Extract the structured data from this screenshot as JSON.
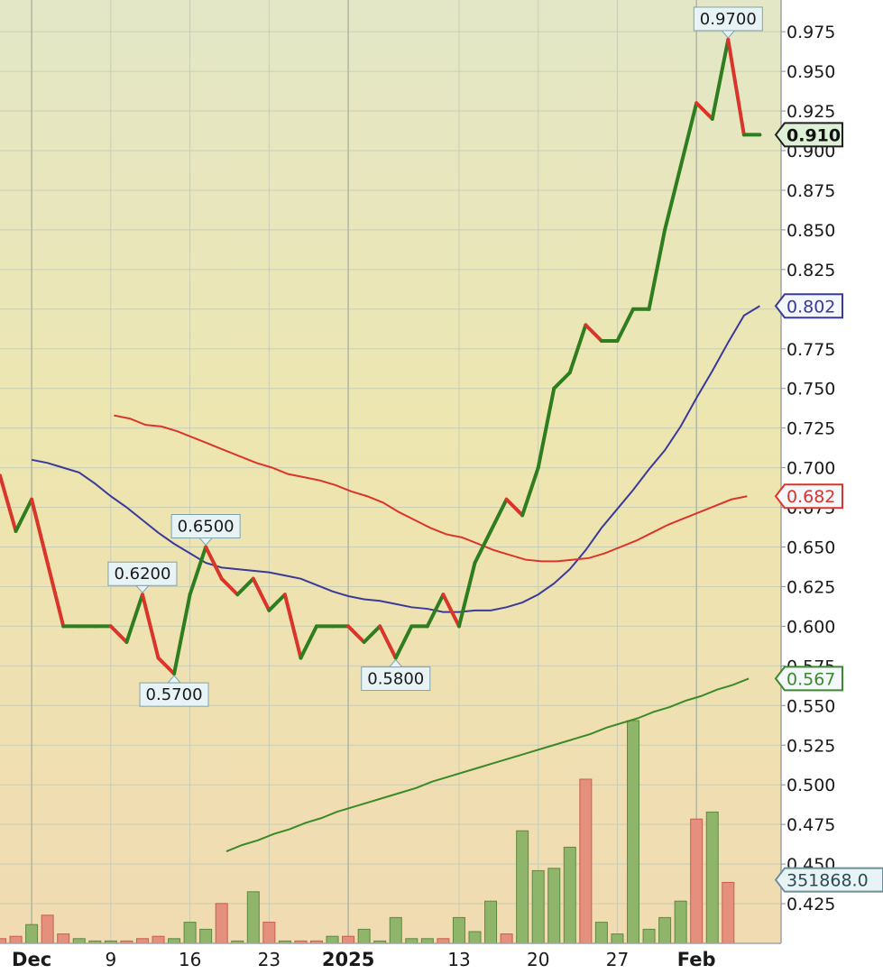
{
  "chart_data": {
    "type": "line",
    "title": "",
    "xlabel": "",
    "ylabel": "",
    "ylim": [
      0.4,
      0.995
    ],
    "grid": true,
    "y_ticks": [
      "0.425",
      "0.450",
      "0.475",
      "0.500",
      "0.525",
      "0.550",
      "0.575",
      "0.600",
      "0.625",
      "0.650",
      "0.675",
      "0.700",
      "0.725",
      "0.750",
      "0.775",
      "0.800",
      "0.825",
      "0.850",
      "0.875",
      "0.900",
      "0.925",
      "0.950",
      "0.975"
    ],
    "x_ticks": [
      {
        "label": "Dec",
        "bold": true,
        "index": 2
      },
      {
        "label": "9",
        "bold": false,
        "index": 7
      },
      {
        "label": "16",
        "bold": false,
        "index": 12
      },
      {
        "label": "23",
        "bold": false,
        "index": 17
      },
      {
        "label": "2025",
        "bold": true,
        "index": 22
      },
      {
        "label": "13",
        "bold": false,
        "index": 29
      },
      {
        "label": "20",
        "bold": false,
        "index": 34
      },
      {
        "label": "27",
        "bold": false,
        "index": 39
      },
      {
        "label": "Feb",
        "bold": true,
        "index": 44
      }
    ],
    "price": {
      "name": "",
      "values": [
        0.695,
        0.66,
        0.68,
        0.64,
        0.6,
        0.6,
        0.6,
        0.6,
        0.59,
        0.62,
        0.58,
        0.57,
        0.62,
        0.65,
        0.63,
        0.62,
        0.63,
        0.61,
        0.62,
        0.58,
        0.6,
        0.6,
        0.6,
        0.59,
        0.6,
        0.58,
        0.6,
        0.6,
        0.62,
        0.6,
        0.64,
        0.66,
        0.68,
        0.67,
        0.7,
        0.75,
        0.76,
        0.79,
        0.78,
        0.78,
        0.8,
        0.8,
        0.85,
        0.89,
        0.93,
        0.92,
        0.97,
        0.91,
        0.91
      ],
      "up_color": "#2e7d1f",
      "down_color": "#d9352a"
    },
    "moving_averages": [
      {
        "name": "",
        "color": "#3a3a9a",
        "last_label": "0.802",
        "start_index": 0,
        "values": [
          0.705,
          0.703,
          0.7,
          0.697,
          0.69,
          0.682,
          0.675,
          0.667,
          0.659,
          0.652,
          0.646,
          0.64,
          0.637,
          0.636,
          0.635,
          0.634,
          0.632,
          0.63,
          0.626,
          0.622,
          0.619,
          0.617,
          0.616,
          0.614,
          0.612,
          0.611,
          0.609,
          0.609,
          0.61,
          0.61,
          0.612,
          0.615,
          0.62,
          0.627,
          0.636,
          0.648,
          0.662,
          0.674,
          0.686,
          0.699,
          0.711,
          0.726,
          0.744,
          0.761,
          0.779,
          0.796,
          0.802
        ]
      },
      {
        "name": "",
        "color": "#d9352a",
        "last_label": "0.682",
        "start_index": 0,
        "values": [
          0.733,
          0.731,
          0.727,
          0.726,
          0.723,
          0.719,
          0.715,
          0.711,
          0.707,
          0.703,
          0.7,
          0.696,
          0.694,
          0.692,
          0.689,
          0.685,
          0.682,
          0.678,
          0.672,
          0.667,
          0.662,
          0.658,
          0.656,
          0.652,
          0.648,
          0.645,
          0.642,
          0.641,
          0.641,
          0.642,
          0.643,
          0.646,
          0.65,
          0.654,
          0.659,
          0.664,
          0.668,
          0.672,
          0.676,
          0.68,
          0.682
        ]
      },
      {
        "name": "",
        "color": "#3a8a2a",
        "last_label": "0.567",
        "start_index": 0,
        "values": [
          0.458,
          0.462,
          0.465,
          0.469,
          0.472,
          0.476,
          0.479,
          0.483,
          0.486,
          0.489,
          0.492,
          0.495,
          0.498,
          0.502,
          0.505,
          0.508,
          0.511,
          0.514,
          0.517,
          0.52,
          0.523,
          0.526,
          0.529,
          0.532,
          0.536,
          0.539,
          0.542,
          0.546,
          0.549,
          0.553,
          0.556,
          0.56,
          0.563,
          0.567
        ]
      }
    ],
    "annotations": [
      {
        "label": "0.9700",
        "index": 46,
        "value": 0.97,
        "position": "above"
      },
      {
        "label": "0.6500",
        "index": 13,
        "value": 0.65,
        "position": "above"
      },
      {
        "label": "0.6200",
        "index": 9,
        "value": 0.62,
        "position": "above"
      },
      {
        "label": "0.5700",
        "index": 11,
        "value": 0.57,
        "position": "below"
      },
      {
        "label": "0.5800",
        "index": 25,
        "value": 0.58,
        "position": "below"
      }
    ],
    "last_price_label": "0.910",
    "volume": {
      "last_label": "351868.0",
      "max": 1000000,
      "bars": [
        {
          "v": 20000,
          "up": false
        },
        {
          "v": 30000,
          "up": false
        },
        {
          "v": 80000,
          "up": true
        },
        {
          "v": 120000,
          "up": false
        },
        {
          "v": 40000,
          "up": false
        },
        {
          "v": 20000,
          "up": true
        },
        {
          "v": 10000,
          "up": true
        },
        {
          "v": 10000,
          "up": true
        },
        {
          "v": 10000,
          "up": false
        },
        {
          "v": 20000,
          "up": false
        },
        {
          "v": 30000,
          "up": false
        },
        {
          "v": 20000,
          "up": true
        },
        {
          "v": 90000,
          "up": true
        },
        {
          "v": 60000,
          "up": true
        },
        {
          "v": 170000,
          "up": false
        },
        {
          "v": 10000,
          "up": true
        },
        {
          "v": 220000,
          "up": true
        },
        {
          "v": 90000,
          "up": false
        },
        {
          "v": 10000,
          "up": true
        },
        {
          "v": 10000,
          "up": false
        },
        {
          "v": 10000,
          "up": false
        },
        {
          "v": 30000,
          "up": true
        },
        {
          "v": 30000,
          "up": false
        },
        {
          "v": 60000,
          "up": true
        },
        {
          "v": 10000,
          "up": true
        },
        {
          "v": 110000,
          "up": true
        },
        {
          "v": 20000,
          "up": true
        },
        {
          "v": 20000,
          "up": true
        },
        {
          "v": 20000,
          "up": false
        },
        {
          "v": 110000,
          "up": true
        },
        {
          "v": 50000,
          "up": true
        },
        {
          "v": 180000,
          "up": true
        },
        {
          "v": 40000,
          "up": false
        },
        {
          "v": 480000,
          "up": true
        },
        {
          "v": 310000,
          "up": true
        },
        {
          "v": 320000,
          "up": true
        },
        {
          "v": 410000,
          "up": true
        },
        {
          "v": 700000,
          "up": false
        },
        {
          "v": 90000,
          "up": true
        },
        {
          "v": 40000,
          "up": true
        },
        {
          "v": 950000,
          "up": true
        },
        {
          "v": 60000,
          "up": true
        },
        {
          "v": 110000,
          "up": true
        },
        {
          "v": 180000,
          "up": true
        },
        {
          "v": 530000,
          "up": false
        },
        {
          "v": 560000,
          "up": true
        },
        {
          "v": 260000,
          "up": false
        }
      ]
    }
  }
}
